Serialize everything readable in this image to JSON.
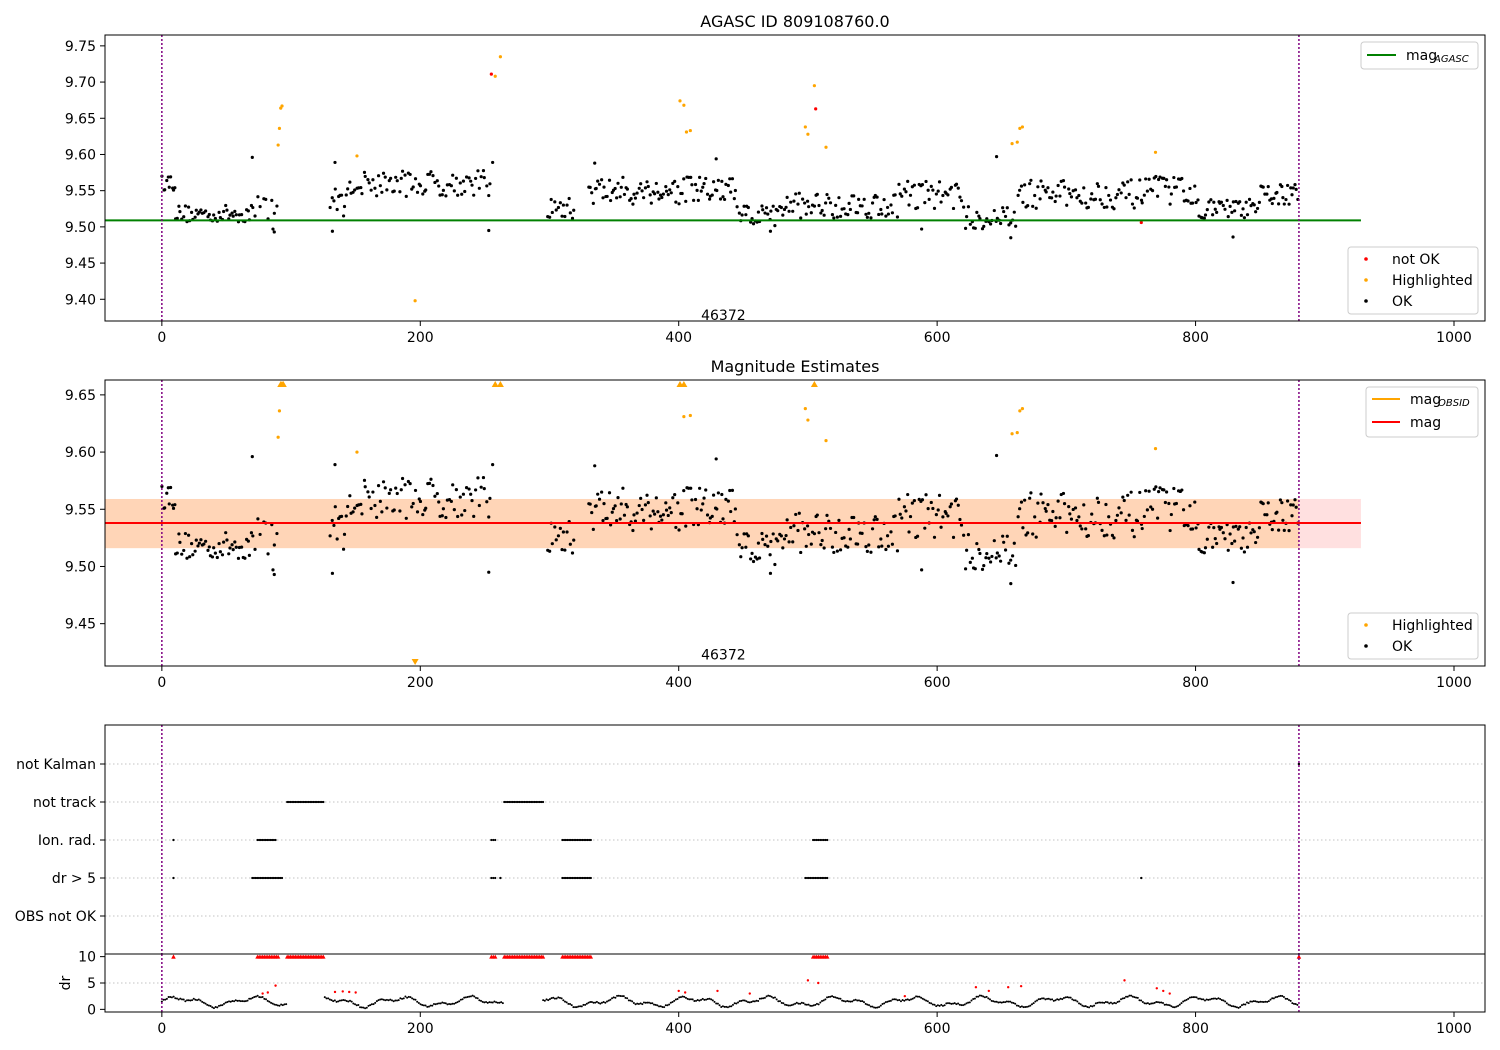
{
  "chart_data": [
    {
      "type": "scatter",
      "title": "AGASC ID 809108760.0",
      "xlim": [
        -44,
        1024
      ],
      "ylim": [
        9.37,
        9.765
      ],
      "xticks": [
        0,
        200,
        400,
        600,
        800,
        1000
      ],
      "yticks": [
        9.4,
        9.45,
        9.5,
        9.55,
        9.6,
        9.65,
        9.7,
        9.75
      ],
      "vlines": [
        0,
        880
      ],
      "annotation": {
        "text": "46372",
        "x": 440,
        "y": 9.378
      },
      "mag_agasc": {
        "value": 9.509,
        "x_range": [
          -44,
          928
        ],
        "color": "#008000"
      },
      "legend_lines": [
        {
          "label": "mag",
          "sub": "AGASC",
          "color": "#008000"
        }
      ],
      "legend_points": [
        {
          "label": "not OK",
          "color": "#ff0000"
        },
        {
          "label": "Highlighted",
          "color": "#ffa500"
        },
        {
          "label": "OK",
          "color": "#000000"
        }
      ],
      "highlighted": [
        [
          90,
          9.613
        ],
        [
          91,
          9.636
        ],
        [
          92,
          9.664
        ],
        [
          93,
          9.667
        ],
        [
          151,
          9.598
        ],
        [
          196,
          9.398
        ],
        [
          258,
          9.708
        ],
        [
          262,
          9.735
        ],
        [
          401,
          9.674
        ],
        [
          404,
          9.668
        ],
        [
          406,
          9.631
        ],
        [
          409,
          9.633
        ],
        [
          498,
          9.638
        ],
        [
          500,
          9.628
        ],
        [
          505,
          9.695
        ],
        [
          514,
          9.61
        ],
        [
          658,
          9.615
        ],
        [
          662,
          9.617
        ],
        [
          664,
          9.636
        ],
        [
          666,
          9.638
        ],
        [
          769,
          9.603
        ]
      ],
      "not_ok": [
        [
          255,
          9.711
        ],
        [
          506,
          9.663
        ],
        [
          758,
          9.506
        ]
      ],
      "ok_segments": [
        {
          "x0": 0,
          "x1": 11,
          "mean": 9.562,
          "amp": 0.012,
          "n": 10
        },
        {
          "x0": 10,
          "x1": 70,
          "mean": 9.518,
          "amp": 0.012,
          "n": 48
        },
        {
          "x0": 70,
          "x1": 90,
          "mean": 9.53,
          "amp": 0.02,
          "n": 10
        },
        {
          "x0": 130,
          "x1": 145,
          "mean": 9.535,
          "amp": 0.02,
          "n": 12
        },
        {
          "x0": 145,
          "x1": 255,
          "mean": 9.56,
          "amp": 0.018,
          "n": 80
        },
        {
          "x0": 298,
          "x1": 320,
          "mean": 9.525,
          "amp": 0.015,
          "n": 16
        },
        {
          "x0": 330,
          "x1": 445,
          "mean": 9.55,
          "amp": 0.02,
          "n": 95
        },
        {
          "x0": 445,
          "x1": 480,
          "mean": 9.515,
          "amp": 0.016,
          "n": 28
        },
        {
          "x0": 480,
          "x1": 570,
          "mean": 9.53,
          "amp": 0.018,
          "n": 70
        },
        {
          "x0": 570,
          "x1": 620,
          "mean": 9.545,
          "amp": 0.02,
          "n": 38
        },
        {
          "x0": 620,
          "x1": 662,
          "mean": 9.512,
          "amp": 0.016,
          "n": 32
        },
        {
          "x0": 662,
          "x1": 760,
          "mean": 9.545,
          "amp": 0.02,
          "n": 75
        },
        {
          "x0": 760,
          "x1": 800,
          "mean": 9.55,
          "amp": 0.02,
          "n": 32
        },
        {
          "x0": 800,
          "x1": 850,
          "mean": 9.525,
          "amp": 0.013,
          "n": 40
        },
        {
          "x0": 850,
          "x1": 880,
          "mean": 9.545,
          "amp": 0.015,
          "n": 26
        }
      ],
      "ok_extra": [
        [
          70,
          9.596
        ],
        [
          86,
          9.497
        ],
        [
          87,
          9.493
        ],
        [
          132,
          9.494
        ],
        [
          134,
          9.589
        ],
        [
          253,
          9.495
        ],
        [
          256,
          9.589
        ],
        [
          335,
          9.588
        ],
        [
          429,
          9.594
        ],
        [
          471,
          9.494
        ],
        [
          588,
          9.497
        ],
        [
          646,
          9.597
        ],
        [
          657,
          9.485
        ],
        [
          829,
          9.486
        ]
      ]
    },
    {
      "type": "scatter",
      "title": "Magnitude Estimates",
      "xlim": [
        -44,
        1024
      ],
      "ylim": [
        9.413,
        9.663
      ],
      "xticks": [
        0,
        200,
        400,
        600,
        800,
        1000
      ],
      "yticks": [
        9.45,
        9.5,
        9.55,
        9.6,
        9.65
      ],
      "vlines": [
        0,
        880
      ],
      "annotation": {
        "text": "46372",
        "x": 440,
        "y": 9.423
      },
      "mag": {
        "value": 9.538,
        "band": [
          9.516,
          9.559
        ],
        "x_range": [
          -44,
          928
        ],
        "color": "#ff0000"
      },
      "mag_obsid": {
        "value": 9.538,
        "band": [
          9.516,
          9.559
        ],
        "x_range": [
          -44,
          880
        ],
        "color": "#ffa500"
      },
      "legend_lines": [
        {
          "label": "mag",
          "sub": "OBSID",
          "color": "#ffa500"
        },
        {
          "label": "mag",
          "sub": "",
          "color": "#ff0000"
        }
      ],
      "legend_points": [
        {
          "label": "Highlighted",
          "color": "#ffa500"
        },
        {
          "label": "OK",
          "color": "#000000"
        }
      ],
      "highlighted": [
        [
          90,
          9.613
        ],
        [
          91,
          9.636
        ],
        [
          151,
          9.6
        ],
        [
          404,
          9.631
        ],
        [
          409,
          9.632
        ],
        [
          498,
          9.638
        ],
        [
          500,
          9.628
        ],
        [
          514,
          9.61
        ],
        [
          658,
          9.616
        ],
        [
          662,
          9.617
        ],
        [
          664,
          9.636
        ],
        [
          666,
          9.638
        ],
        [
          769,
          9.603
        ]
      ],
      "clipped_up": [
        92,
        93,
        94,
        258,
        262,
        401,
        404,
        505
      ],
      "clipped_down": [
        196
      ]
    },
    {
      "type": "scatter",
      "title": "",
      "xlim": [
        -44,
        1024
      ],
      "vlines": [
        0,
        880
      ],
      "categories": [
        "not Kalman",
        "not track",
        "Ion. rad.",
        "dr > 5",
        "OBS not OK"
      ],
      "flag_ranges": {
        "not Kalman": [
          [
            880,
            880
          ]
        ],
        "not track": [
          [
            97,
            125
          ],
          [
            265,
            295
          ]
        ],
        "Ion. rad.": [
          [
            9,
            9
          ],
          [
            74,
            88
          ],
          [
            255,
            258
          ],
          [
            310,
            332
          ],
          [
            504,
            515
          ]
        ],
        "dr > 5": [
          [
            9,
            9
          ],
          [
            70,
            93
          ],
          [
            255,
            258
          ],
          [
            262,
            262
          ],
          [
            310,
            332
          ],
          [
            498,
            515
          ],
          [
            758,
            758
          ]
        ],
        "OBS not OK": []
      }
    },
    {
      "type": "scatter",
      "title": "",
      "ylabel": "dr",
      "xlim": [
        -44,
        1024
      ],
      "ylim": [
        -0.5,
        10.5
      ],
      "xticks": [
        0,
        200,
        400,
        600,
        800,
        1000
      ],
      "yticks": [
        0,
        5,
        10
      ],
      "vlines": [
        0,
        880
      ],
      "red_tri_ranges": [
        [
          9,
          9
        ],
        [
          74,
          90
        ],
        [
          97,
          125
        ],
        [
          255,
          258
        ],
        [
          265,
          295
        ],
        [
          310,
          332
        ],
        [
          504,
          515
        ],
        [
          880,
          880
        ]
      ],
      "gaps": [
        [
          97,
          125
        ],
        [
          265,
          295
        ]
      ]
    }
  ]
}
